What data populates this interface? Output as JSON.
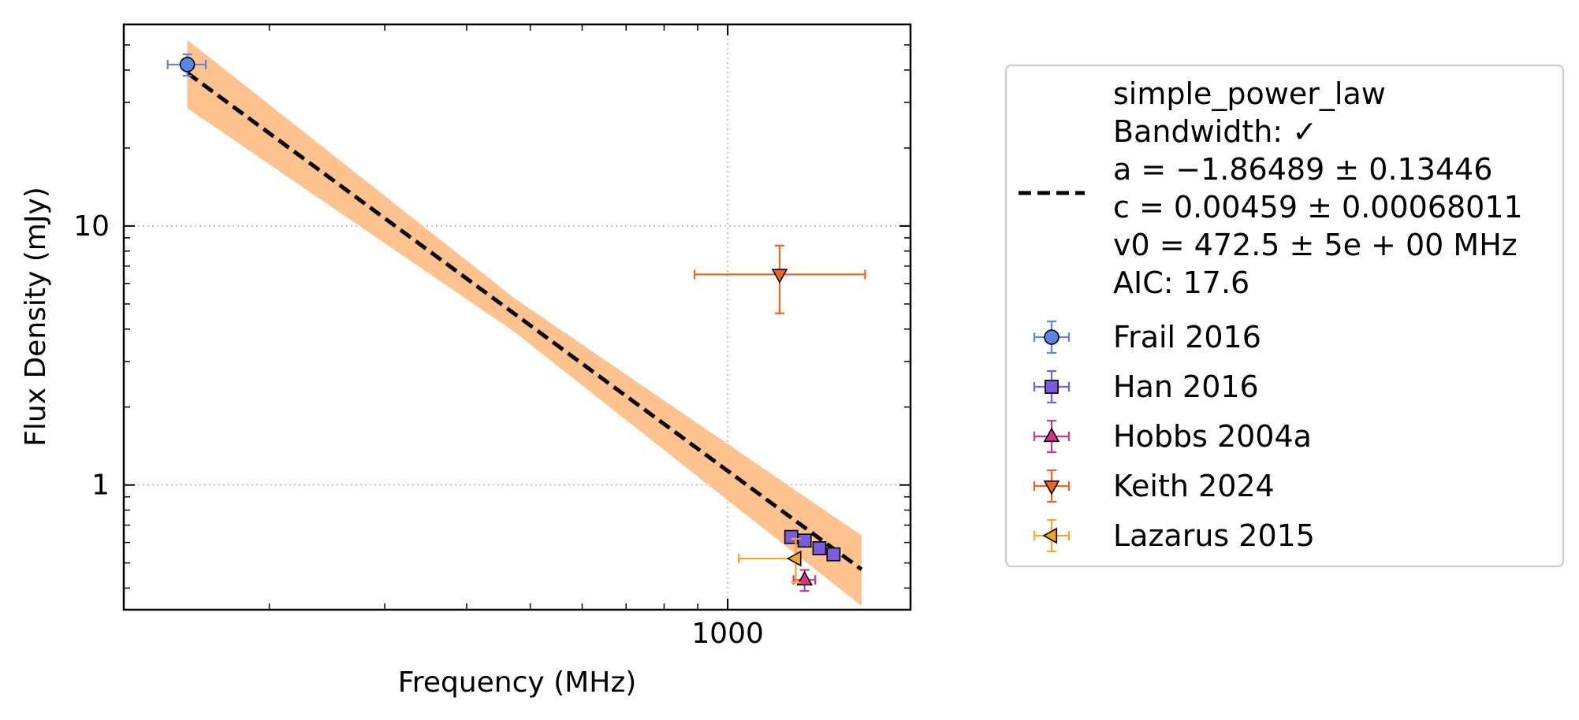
{
  "chart_data": {
    "type": "scatter",
    "xlabel": "Frequency (MHz)",
    "ylabel": "Flux Density (mJy)",
    "x_scale": "log",
    "y_scale": "log",
    "xlim": [
      120,
      1900
    ],
    "ylim": [
      0.33,
      60
    ],
    "x_ticks": [
      {
        "value": 1000,
        "label": "1000"
      }
    ],
    "y_ticks": [
      {
        "value": 1,
        "label": "1"
      },
      {
        "value": 10,
        "label": "10"
      }
    ],
    "grid": true,
    "legend_position": "outside-right",
    "fit": {
      "name": "simple_power_law",
      "legend_lines": [
        "simple_power_law",
        "Bandwidth: ✓",
        "a = −1.86489 ± 0.13446",
        "c = 0.00459 ± 0.00068011",
        "v0 = 472.5 ± 5e + 00 MHz",
        "AIC: 17.6"
      ],
      "a": -1.86489,
      "a_err": 0.13446,
      "c": 0.00459,
      "c_err": 0.00068011,
      "v0": 472.5,
      "x_range": [
        150,
        1600
      ],
      "color": "#000000",
      "band_color": "#fdbf87"
    },
    "series": [
      {
        "name": "Frail 2016",
        "marker": "circle",
        "color": "#5b86e5",
        "edge": "#000000",
        "points": [
          {
            "x": 150,
            "y": 42,
            "xerr": 10,
            "yerr_lo": 4,
            "yerr_hi": 4
          }
        ]
      },
      {
        "name": "Han 2016",
        "marker": "square",
        "color": "#7b5ce0",
        "edge": "#000000",
        "points": [
          {
            "x": 1250,
            "y": 0.63,
            "xerr": 0,
            "yerr_lo": 0,
            "yerr_hi": 0
          },
          {
            "x": 1310,
            "y": 0.61,
            "xerr": 0,
            "yerr_lo": 0,
            "yerr_hi": 0
          },
          {
            "x": 1380,
            "y": 0.57,
            "xerr": 0,
            "yerr_lo": 0,
            "yerr_hi": 0
          },
          {
            "x": 1450,
            "y": 0.54,
            "xerr": 0,
            "yerr_lo": 0,
            "yerr_hi": 0
          }
        ]
      },
      {
        "name": "Hobbs 2004a",
        "marker": "triangle-up",
        "color": "#d63384",
        "edge": "#000000",
        "points": [
          {
            "x": 1310,
            "y": 0.43,
            "xerr": 50,
            "yerr_lo": 0.04,
            "yerr_hi": 0.04
          }
        ]
      },
      {
        "name": "Keith 2024",
        "marker": "triangle-down",
        "color": "#f0641e",
        "edge": "#000000",
        "points": [
          {
            "x": 1200,
            "y": 6.5,
            "xerr_lo": 310,
            "xerr_hi": 420,
            "yerr_lo": 1.9,
            "yerr_hi": 1.9
          }
        ]
      },
      {
        "name": "Lazarus 2015",
        "marker": "triangle-left",
        "color": "#f5a623",
        "edge": "#000000",
        "points": [
          {
            "x": 1270,
            "y": 0.52,
            "xerr_lo": 230,
            "xerr_hi": 0,
            "yerr_lo": 0.1,
            "yerr_hi": 0.1
          }
        ]
      }
    ]
  }
}
